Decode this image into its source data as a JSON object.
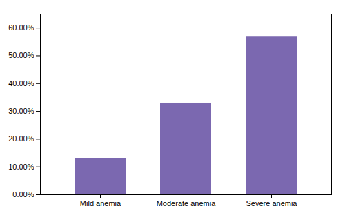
{
  "chart_data": {
    "type": "bar",
    "categories": [
      "Mild anemia",
      "Moderate anemia",
      "Severe anemia"
    ],
    "values": [
      0.13,
      0.33,
      0.57
    ],
    "color": "#7B68B0",
    "ylim": [
      0.0,
      0.65
    ],
    "yticks": [
      {
        "value": 0.0,
        "label": "0.00%"
      },
      {
        "value": 0.1,
        "label": "10.00%"
      },
      {
        "value": 0.2,
        "label": "20.00%"
      },
      {
        "value": 0.3,
        "label": "30.00%"
      },
      {
        "value": 0.4,
        "label": "40.00%"
      },
      {
        "value": 0.5,
        "label": "50.00%"
      },
      {
        "value": 0.6,
        "label": "60.00%"
      }
    ],
    "grid": false
  }
}
